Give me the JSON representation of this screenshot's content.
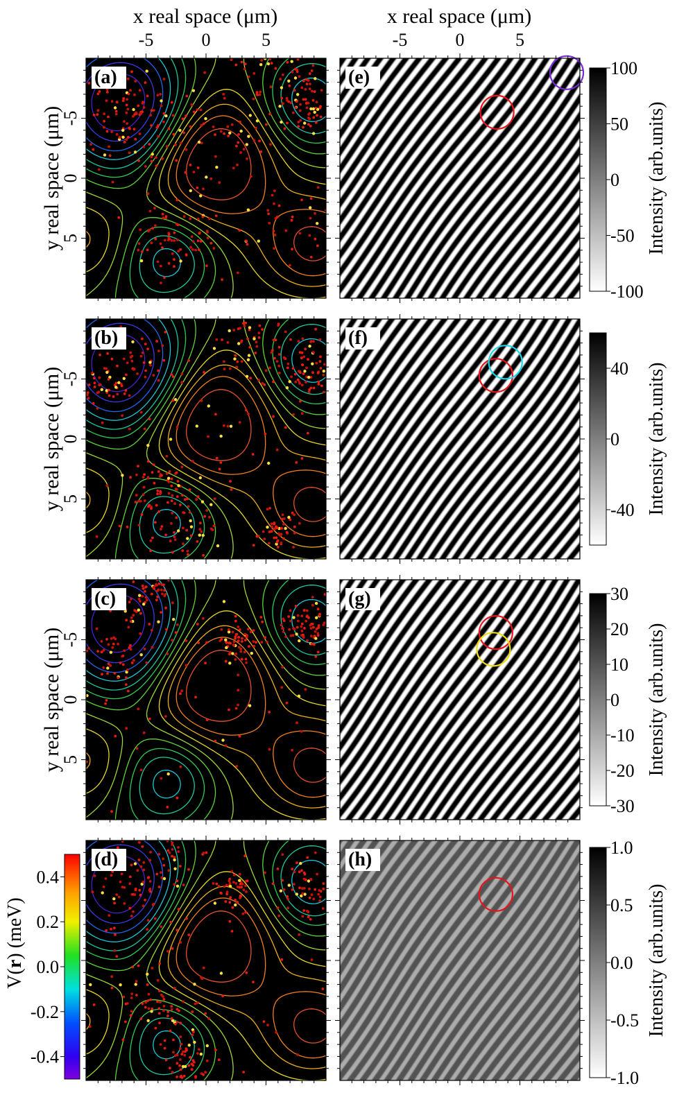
{
  "figure": {
    "x_axis_title": "x real space (μm)",
    "y_axis_title": "y real space (μm)",
    "x_ticks": [
      "-5",
      "0",
      "5"
    ],
    "y_ticks": [
      "-5",
      "0",
      "5"
    ],
    "cbar_title": "Intensity (arb.units)",
    "v_cbar_title_prefix": "V(",
    "v_cbar_title_bold": "r",
    "v_cbar_title_suffix": ") (meV)",
    "v_cbar_ticks": [
      "0.4",
      "0.2",
      "0.0",
      "-0.2",
      "-0.4"
    ]
  },
  "chart_data": [
    {
      "type": "heatmap",
      "label": "(a)",
      "kind": "density on potential contours",
      "xlim": [
        -10,
        10
      ],
      "ylim": [
        10,
        -10
      ],
      "contour_colors": [
        "#4a2dd6",
        "#1f66f0",
        "#19c9d8",
        "#2ecc55",
        "#9ed836",
        "#e8d82a",
        "#f0a020",
        "#e8502a"
      ]
    },
    {
      "type": "heatmap",
      "label": "(b)",
      "kind": "density on potential contours",
      "xlim": [
        -10,
        10
      ],
      "ylim": [
        10,
        -10
      ]
    },
    {
      "type": "heatmap",
      "label": "(c)",
      "kind": "density on potential contours",
      "xlim": [
        -10,
        10
      ],
      "ylim": [
        10,
        -10
      ]
    },
    {
      "type": "heatmap",
      "label": "(d)",
      "kind": "density on potential contours",
      "xlim": [
        -10,
        10
      ],
      "ylim": [
        10,
        -10
      ],
      "colorbar": {
        "range": [
          -0.5,
          0.5
        ],
        "ticks": [
          0.4,
          0.2,
          0.0,
          -0.2,
          -0.4
        ]
      }
    },
    {
      "type": "heatmap",
      "label": "(e)",
      "kind": "interference fringes",
      "colorbar": {
        "range": [
          -100,
          100
        ],
        "ticks": [
          "100",
          "50",
          "0",
          "-50",
          "-100"
        ]
      },
      "circles": [
        {
          "color": "#e8141a",
          "x": 3.1,
          "y": -5.5
        },
        {
          "color": "#7a2ad8",
          "x": 8.9,
          "y": -8.8
        }
      ],
      "contrast": 1.0
    },
    {
      "type": "heatmap",
      "label": "(f)",
      "kind": "interference fringes",
      "colorbar": {
        "range": [
          -60,
          60
        ],
        "ticks": [
          "40",
          "0",
          "-40"
        ]
      },
      "circles": [
        {
          "color": "#e8141a",
          "x": 3.0,
          "y": -5.3
        },
        {
          "color": "#18d8e8",
          "x": 3.8,
          "y": -6.4
        }
      ],
      "contrast": 1.0
    },
    {
      "type": "heatmap",
      "label": "(g)",
      "kind": "interference fringes",
      "colorbar": {
        "range": [
          -30,
          30
        ],
        "ticks": [
          "30",
          "20",
          "10",
          "0",
          "-10",
          "-20",
          "-30"
        ]
      },
      "circles": [
        {
          "color": "#e8141a",
          "x": 3.0,
          "y": -5.6
        },
        {
          "color": "#f0e010",
          "x": 2.8,
          "y": -4.2
        }
      ],
      "contrast": 1.0
    },
    {
      "type": "heatmap",
      "label": "(h)",
      "kind": "interference fringes",
      "colorbar": {
        "range": [
          -1.0,
          1.0
        ],
        "ticks": [
          "1.0",
          "0.5",
          "0.0",
          "-0.5",
          "-1.0"
        ]
      },
      "circles": [
        {
          "color": "#e8141a",
          "x": 3.0,
          "y": -5.5
        }
      ],
      "contrast": 0.35
    }
  ]
}
